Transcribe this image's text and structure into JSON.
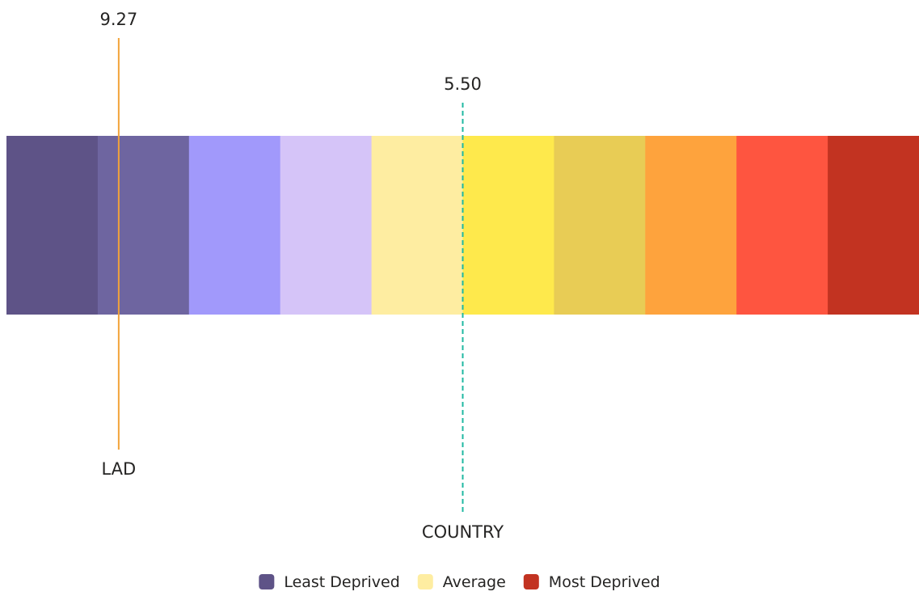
{
  "chart_data": {
    "type": "bar",
    "description_scale": "deprivation decile strip",
    "bands": [
      {
        "decile": 10,
        "color": "#5e5387"
      },
      {
        "decile": 9,
        "color": "#6e65a0"
      },
      {
        "decile": 8,
        "color": "#a199fb"
      },
      {
        "decile": 7,
        "color": "#d5c4f8"
      },
      {
        "decile": 6,
        "color": "#feeda1"
      },
      {
        "decile": 5,
        "color": "#fee94c"
      },
      {
        "decile": 4,
        "color": "#e8cc55"
      },
      {
        "decile": 3,
        "color": "#fea33d"
      },
      {
        "decile": 2,
        "color": "#fe5540"
      },
      {
        "decile": 1,
        "color": "#c23321"
      }
    ],
    "scale_range": [
      10.5,
      0.5
    ],
    "markers": [
      {
        "name": "LAD",
        "value": 9.27,
        "value_label": "9.27",
        "line_style": "solid",
        "color": "#f2a33a"
      },
      {
        "name": "COUNTRY",
        "value": 5.5,
        "value_label": "5.50",
        "line_style": "dashed",
        "color": "#1fb8a2"
      }
    ],
    "legend": {
      "position": "bottom-center",
      "items": [
        {
          "label": "Least Deprived",
          "color": "#5e5387"
        },
        {
          "label": "Average",
          "color": "#feeda1"
        },
        {
          "label": "Most Deprived",
          "color": "#c23321"
        }
      ]
    }
  }
}
